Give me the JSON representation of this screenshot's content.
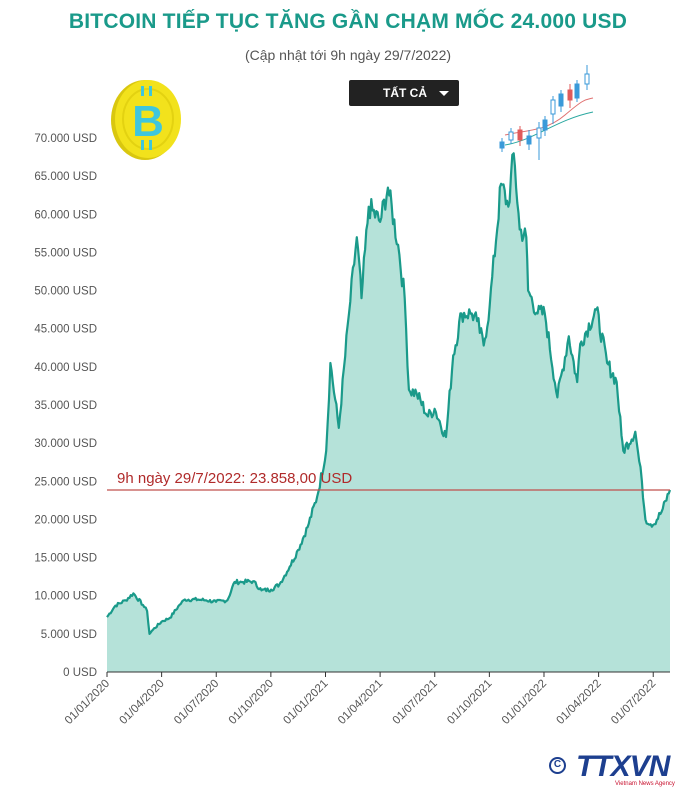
{
  "header": {
    "title": "BITCOIN TIẾP TỤC TĂNG GẦN CHẠM MỐC 24.000 USD",
    "subtitle": "(Cập nhật tới 9h ngày 29/7/2022)"
  },
  "filter": {
    "selected": "TẤT CẢ"
  },
  "logo": {
    "text": "TTXVN",
    "tagline": "Vietnam News Agency"
  },
  "colors": {
    "title": "#1a9a8a",
    "area_fill": "#b5e2d9",
    "line": "#1a9a8a",
    "reference_line": "#c0504d",
    "coin": "#f2e21c",
    "coin_symbol": "#3ec6dd"
  },
  "icons": [
    "bitcoin-coin-icon",
    "candlestick-icon",
    "chevron-down-icon",
    "copyright-icon"
  ],
  "chart_data": {
    "type": "area",
    "title": "BITCOIN TIẾP TỤC TĂNG GẦN CHẠM MỐC 24.000 USD",
    "xlabel": "",
    "ylabel": "",
    "ylim": [
      0,
      70000
    ],
    "yticks": [
      0,
      5000,
      10000,
      15000,
      20000,
      25000,
      30000,
      35000,
      40000,
      45000,
      50000,
      55000,
      60000,
      65000,
      70000
    ],
    "ytick_labels": [
      "0 USD",
      "5.000 USD",
      "10.000 USD",
      "15.000 USD",
      "20.000 USD",
      "25.000 USD",
      "30.000 USD",
      "35.000 USD",
      "40.000 USD",
      "45.000 USD",
      "50.000 USD",
      "55.000 USD",
      "60.000 USD",
      "65.000 USD",
      "70.000 USD"
    ],
    "xtick_labels": [
      "01/01/2020",
      "01/04/2020",
      "01/07/2020",
      "01/10/2020",
      "01/01/2021",
      "01/04/2021",
      "01/07/2021",
      "01/10/2021",
      "01/01/2022",
      "01/04/2022",
      "01/07/2022"
    ],
    "grid": false,
    "series": [
      {
        "x": [
          "2020-01-01",
          "2020-01-15",
          "2020-02-01",
          "2020-02-14",
          "2020-03-01",
          "2020-03-08",
          "2020-03-12",
          "2020-03-16",
          "2020-04-01",
          "2020-04-15",
          "2020-05-01",
          "2020-05-10",
          "2020-06-01",
          "2020-06-15",
          "2020-07-01",
          "2020-07-20",
          "2020-08-01",
          "2020-08-15",
          "2020-09-01",
          "2020-09-15",
          "2020-10-01",
          "2020-10-15",
          "2020-11-01",
          "2020-11-15",
          "2020-12-01",
          "2020-12-17",
          "2021-01-01",
          "2021-01-08",
          "2021-01-22",
          "2021-02-08",
          "2021-02-21",
          "2021-03-01",
          "2021-03-13",
          "2021-04-01",
          "2021-04-14",
          "2021-05-01",
          "2021-05-12",
          "2021-05-19",
          "2021-06-01",
          "2021-06-20",
          "2021-07-01",
          "2021-07-20",
          "2021-08-01",
          "2021-08-15",
          "2021-09-01",
          "2021-09-10",
          "2021-09-21",
          "2021-10-01",
          "2021-10-20",
          "2021-11-01",
          "2021-11-10",
          "2021-11-20",
          "2021-12-01",
          "2021-12-04",
          "2021-12-20",
          "2022-01-01",
          "2022-01-22",
          "2022-02-10",
          "2022-02-24",
          "2022-03-01",
          "2022-03-28",
          "2022-04-15",
          "2022-05-01",
          "2022-05-09",
          "2022-05-12",
          "2022-06-01",
          "2022-06-12",
          "2022-06-18",
          "2022-07-01",
          "2022-07-15",
          "2022-07-29"
        ],
        "values": [
          7200,
          8700,
          9400,
          10300,
          8800,
          8000,
          5000,
          5400,
          6600,
          7100,
          8800,
          9500,
          9500,
          9400,
          9200,
          9400,
          11800,
          11800,
          11900,
          10700,
          10800,
          11500,
          13800,
          16000,
          19000,
          23000,
          29000,
          40500,
          32000,
          47000,
          57000,
          49000,
          61000,
          59000,
          63500,
          56000,
          49000,
          37000,
          36500,
          33500,
          34500,
          30800,
          41500,
          47000,
          47000,
          46000,
          42800,
          48000,
          64000,
          61000,
          68000,
          58000,
          57000,
          50000,
          47000,
          47000,
          36000,
          44000,
          38000,
          43000,
          47500,
          40500,
          38000,
          31000,
          29000,
          31500,
          25000,
          20000,
          19300,
          21000,
          23858
        ]
      }
    ],
    "reference_line": {
      "value": 23858,
      "label": "9h ngày 29/7/2022: 23.858,00 USD"
    },
    "x_start": "2020-01-01",
    "x_end": "2022-07-29"
  }
}
